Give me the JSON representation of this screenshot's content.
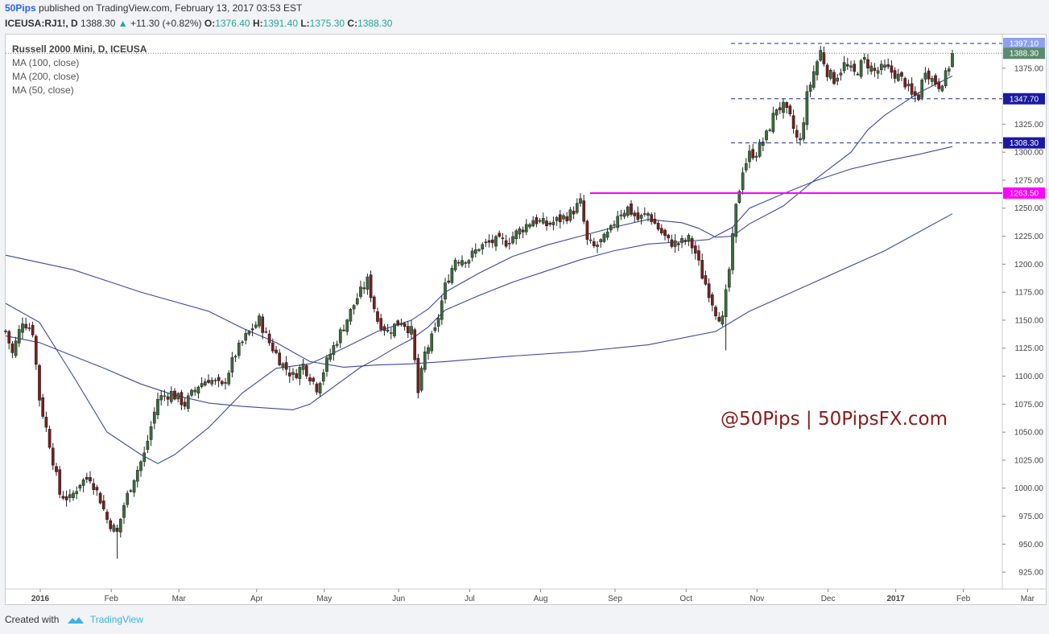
{
  "header": {
    "publisher": "50Pips",
    "published_text": "published on TradingView.com, February 13, 2017 03:53 EST",
    "symbol": "ICEUSA:RJ1!, D",
    "last_price": "1388.30",
    "change": "+11.30 (+0.82%)",
    "open_label": "O:",
    "open_value": "1376.40",
    "high_label": "H:",
    "high_value": "1391.40",
    "low_label": "L:",
    "low_value": "1375.30",
    "close_label": "C:",
    "close_value": "1388.30"
  },
  "legend": {
    "title": "Russell 2000 Mini, D, ICEUSA",
    "ma_100": "MA (100, close)",
    "ma_200": "MA (200, close)",
    "ma_50": "MA (50, close)"
  },
  "watermark": "@50Pips | 50PipsFX.com",
  "footer": {
    "created_with": "Created with",
    "brand": "TradingView"
  },
  "colors": {
    "up": "#3a6b3a",
    "down": "#7b1c1c",
    "ma": "#3b4aa0",
    "dashed": "#1a2fa0",
    "magenta": "#ff00ff",
    "last": "#5b8a6e"
  },
  "chart_data": {
    "type": "candlestick",
    "title": "Russell 2000 Mini, D, ICEUSA",
    "ylim": [
      910,
      1405
    ],
    "y_ticks": [
      925,
      950,
      975,
      1000,
      1025,
      1050,
      1075,
      1100,
      1125,
      1150,
      1175,
      1200,
      1225,
      1250,
      1275,
      1300,
      1325,
      1350,
      1375
    ],
    "y_tick_labels": [
      "925.00",
      "950.00",
      "975.00",
      "1000.00",
      "1025.00",
      "1050.00",
      "1075.00",
      "1100.00",
      "1125.00",
      "1150.00",
      "1175.00",
      "1200.00",
      "1225.00",
      "1250.00",
      "1275.00",
      "1300.00",
      "1325.00",
      "1350.00",
      "1375.00"
    ],
    "x_labels": [
      "2016",
      "Feb",
      "Mar",
      "Apr",
      "May",
      "Jun",
      "Jul",
      "Aug",
      "Sep",
      "Oct",
      "Nov",
      "Dec",
      "2017",
      "Feb",
      "Mar"
    ],
    "x_label_days": [
      0,
      21,
      41,
      64,
      84,
      106,
      127,
      148,
      170,
      191,
      212,
      233,
      253,
      273,
      292
    ],
    "close_anchors": [
      [
        0,
        1140
      ],
      [
        2,
        1120
      ],
      [
        5,
        1150
      ],
      [
        8,
        1140
      ],
      [
        10,
        1080
      ],
      [
        13,
        1040
      ],
      [
        16,
        995
      ],
      [
        19,
        990
      ],
      [
        22,
        1005
      ],
      [
        25,
        1010
      ],
      [
        28,
        990
      ],
      [
        30,
        972
      ],
      [
        33,
        960
      ],
      [
        35,
        985
      ],
      [
        38,
        1010
      ],
      [
        41,
        1030
      ],
      [
        45,
        1080
      ],
      [
        49,
        1085
      ],
      [
        53,
        1075
      ],
      [
        57,
        1092
      ],
      [
        60,
        1098
      ],
      [
        64,
        1090
      ],
      [
        68,
        1120
      ],
      [
        71,
        1135
      ],
      [
        75,
        1150
      ],
      [
        78,
        1130
      ],
      [
        82,
        1110
      ],
      [
        85,
        1100
      ],
      [
        88,
        1110
      ],
      [
        92,
        1090
      ],
      [
        96,
        1120
      ],
      [
        100,
        1145
      ],
      [
        104,
        1170
      ],
      [
        107,
        1185
      ],
      [
        110,
        1150
      ],
      [
        113,
        1140
      ],
      [
        117,
        1150
      ],
      [
        120,
        1140
      ],
      [
        122,
        1085
      ],
      [
        124,
        1120
      ],
      [
        127,
        1140
      ],
      [
        130,
        1180
      ],
      [
        133,
        1205
      ],
      [
        137,
        1205
      ],
      [
        140,
        1215
      ],
      [
        144,
        1220
      ],
      [
        148,
        1220
      ],
      [
        152,
        1230
      ],
      [
        156,
        1240
      ],
      [
        160,
        1235
      ],
      [
        164,
        1240
      ],
      [
        167,
        1245
      ],
      [
        170,
        1255
      ],
      [
        172,
        1220
      ],
      [
        174,
        1215
      ],
      [
        177,
        1222
      ],
      [
        179,
        1230
      ],
      [
        181,
        1245
      ],
      [
        184,
        1250
      ],
      [
        187,
        1240
      ],
      [
        190,
        1245
      ],
      [
        193,
        1232
      ],
      [
        196,
        1220
      ],
      [
        199,
        1218
      ],
      [
        202,
        1222
      ],
      [
        204,
        1210
      ],
      [
        206,
        1190
      ],
      [
        208,
        1175
      ],
      [
        210,
        1158
      ],
      [
        212,
        1150
      ],
      [
        214,
        1195
      ],
      [
        216,
        1250
      ],
      [
        218,
        1285
      ],
      [
        220,
        1298
      ],
      [
        222,
        1300
      ],
      [
        225,
        1315
      ],
      [
        228,
        1340
      ],
      [
        230,
        1340
      ],
      [
        232,
        1330
      ],
      [
        234,
        1312
      ],
      [
        235,
        1310
      ],
      [
        237,
        1350
      ],
      [
        239,
        1372
      ],
      [
        241,
        1390
      ],
      [
        243,
        1372
      ],
      [
        245,
        1365
      ],
      [
        248,
        1378
      ],
      [
        251,
        1370
      ],
      [
        254,
        1382
      ],
      [
        257,
        1372
      ],
      [
        260,
        1375
      ],
      [
        263,
        1370
      ],
      [
        266,
        1362
      ],
      [
        268,
        1350
      ],
      [
        270,
        1350
      ],
      [
        272,
        1375
      ],
      [
        274,
        1365
      ],
      [
        276,
        1360
      ],
      [
        278,
        1368
      ],
      [
        279,
        1377
      ],
      [
        280,
        1388.3
      ]
    ],
    "sma_100": [
      [
        0,
        1136
      ],
      [
        10,
        1130
      ],
      [
        20,
        1118
      ],
      [
        30,
        1106
      ],
      [
        40,
        1093
      ],
      [
        50,
        1083
      ],
      [
        60,
        1076
      ],
      [
        70,
        1073
      ],
      [
        80,
        1071
      ],
      [
        85,
        1070
      ],
      [
        90,
        1075
      ],
      [
        95,
        1086
      ],
      [
        100,
        1097
      ],
      [
        105,
        1108
      ],
      [
        110,
        1116
      ],
      [
        115,
        1125
      ],
      [
        120,
        1133
      ],
      [
        125,
        1144
      ],
      [
        130,
        1159
      ],
      [
        140,
        1172
      ],
      [
        150,
        1184
      ],
      [
        160,
        1194
      ],
      [
        170,
        1204
      ],
      [
        180,
        1212
      ],
      [
        190,
        1218
      ],
      [
        200,
        1220
      ],
      [
        208,
        1222
      ],
      [
        215,
        1233
      ],
      [
        220,
        1250
      ],
      [
        230,
        1263
      ],
      [
        240,
        1275
      ],
      [
        250,
        1285
      ],
      [
        260,
        1292
      ],
      [
        270,
        1298
      ],
      [
        280,
        1305
      ]
    ],
    "sma_200": [
      [
        0,
        1208
      ],
      [
        20,
        1195
      ],
      [
        40,
        1175
      ],
      [
        60,
        1158
      ],
      [
        70,
        1143
      ],
      [
        80,
        1130
      ],
      [
        90,
        1113
      ],
      [
        100,
        1108
      ],
      [
        110,
        1110
      ],
      [
        120,
        1111
      ],
      [
        130,
        1113
      ],
      [
        150,
        1118
      ],
      [
        170,
        1122
      ],
      [
        190,
        1128
      ],
      [
        210,
        1140
      ],
      [
        220,
        1158
      ],
      [
        240,
        1185
      ],
      [
        260,
        1212
      ],
      [
        280,
        1245
      ]
    ],
    "sma_50": [
      [
        0,
        1165
      ],
      [
        10,
        1148
      ],
      [
        20,
        1100
      ],
      [
        30,
        1050
      ],
      [
        40,
        1030
      ],
      [
        45,
        1022
      ],
      [
        50,
        1030
      ],
      [
        60,
        1054
      ],
      [
        70,
        1085
      ],
      [
        80,
        1107
      ],
      [
        90,
        1111
      ],
      [
        100,
        1125
      ],
      [
        110,
        1140
      ],
      [
        120,
        1150
      ],
      [
        125,
        1160
      ],
      [
        130,
        1175
      ],
      [
        140,
        1192
      ],
      [
        150,
        1207
      ],
      [
        160,
        1217
      ],
      [
        170,
        1225
      ],
      [
        180,
        1233
      ],
      [
        190,
        1240
      ],
      [
        200,
        1237
      ],
      [
        205,
        1232
      ],
      [
        210,
        1224
      ],
      [
        215,
        1225
      ],
      [
        220,
        1236
      ],
      [
        230,
        1252
      ],
      [
        240,
        1277
      ],
      [
        250,
        1300
      ],
      [
        255,
        1320
      ],
      [
        260,
        1333
      ],
      [
        270,
        1353
      ],
      [
        280,
        1368
      ]
    ],
    "levels": [
      {
        "value": 1397.1,
        "label": "1397.10",
        "style": "dashed"
      },
      {
        "value": 1347.7,
        "label": "1347.70",
        "style": "dashed"
      },
      {
        "value": 1308.3,
        "label": "1308.30",
        "style": "dashed"
      },
      {
        "value": 1263.5,
        "label": "1263.50",
        "style": "solid"
      }
    ],
    "last_price": {
      "value": 1388.3,
      "label": "1388.30"
    }
  }
}
